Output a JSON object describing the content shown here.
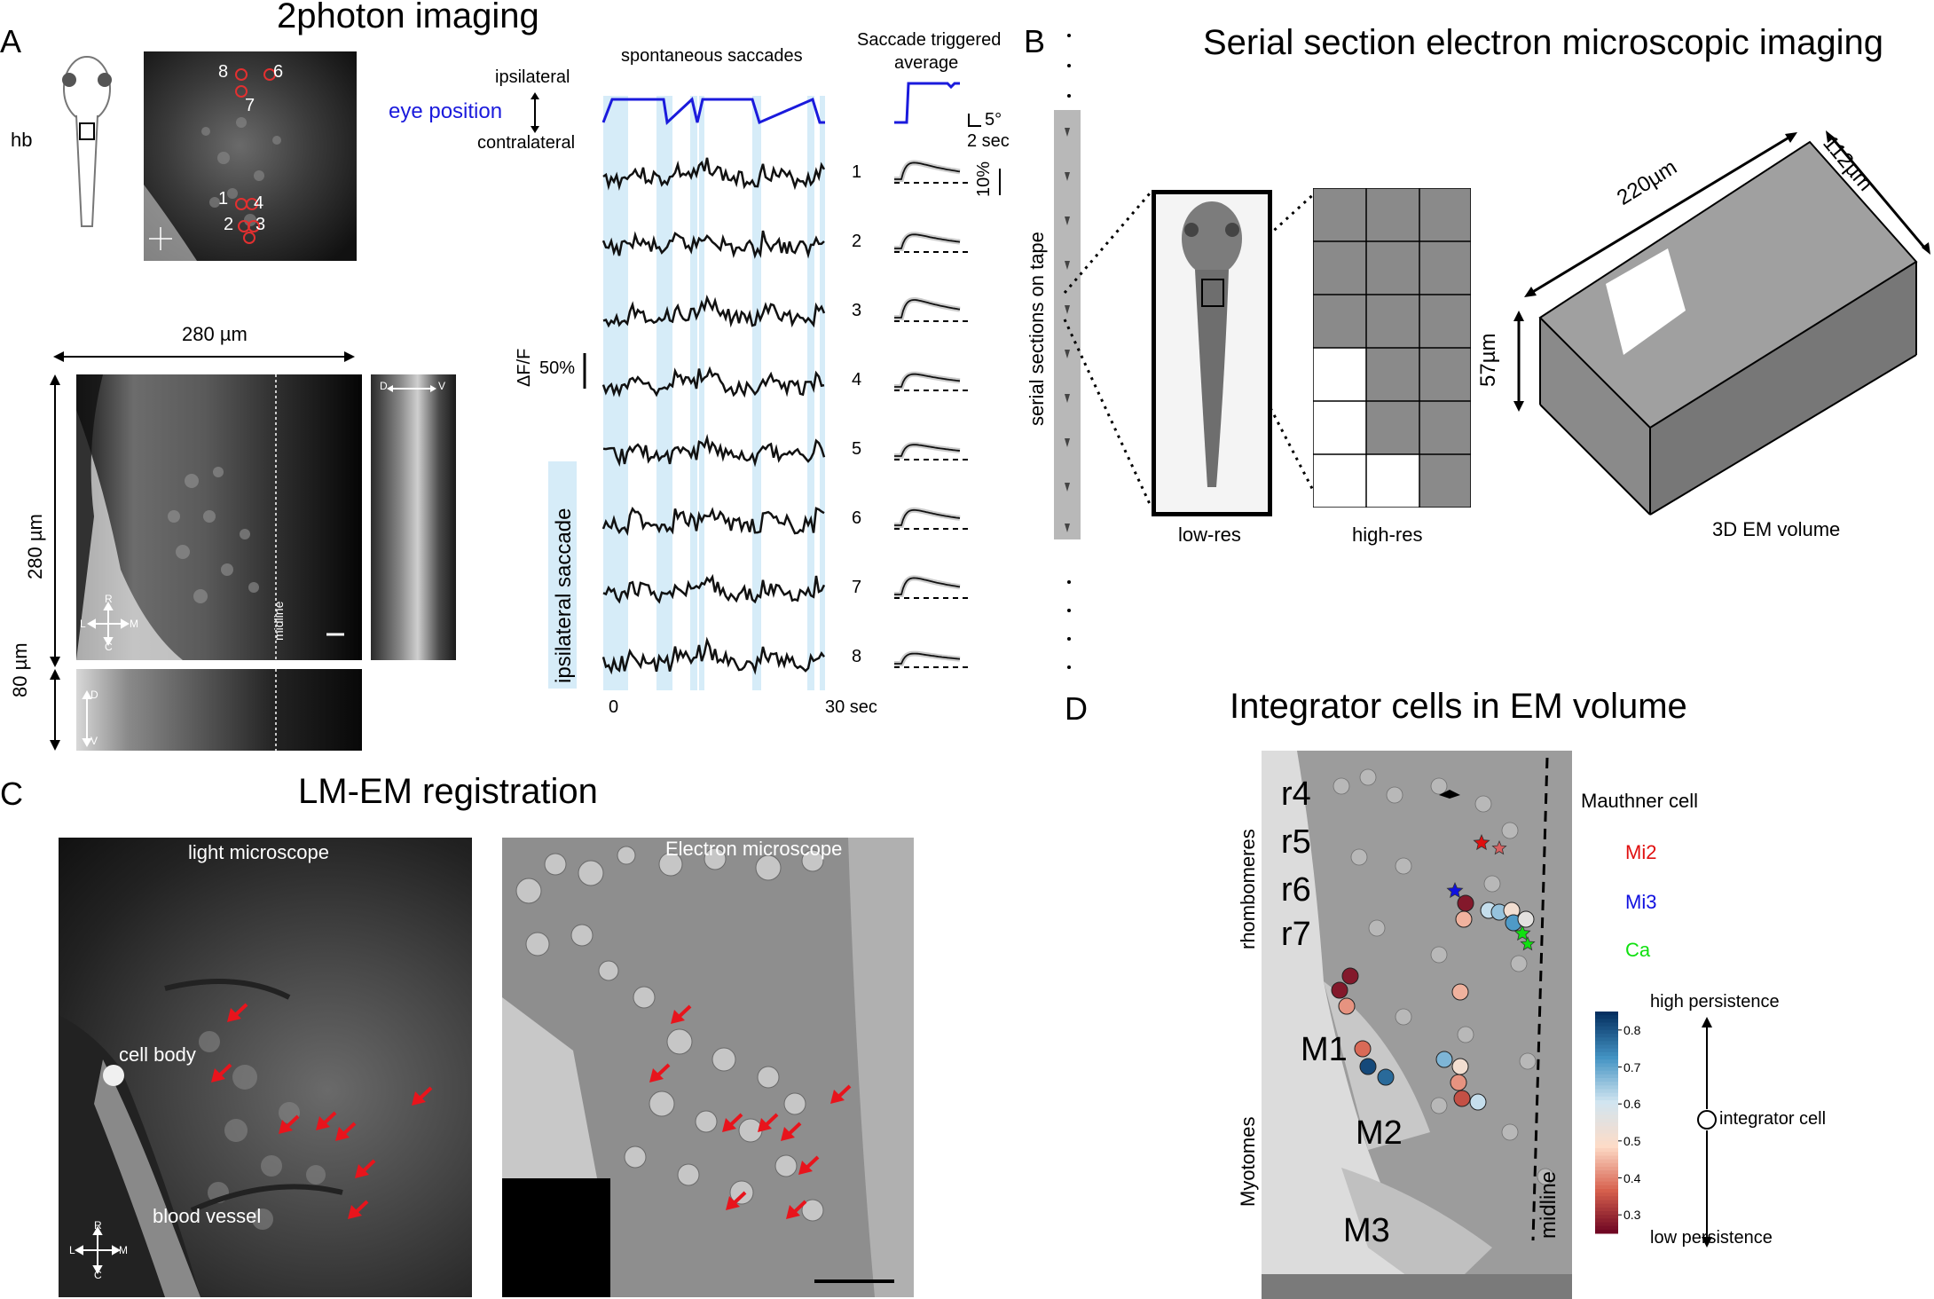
{
  "panelA": {
    "letter": "A",
    "title": "2photon imaging",
    "hb": "hb",
    "cell_numbers": [
      "1",
      "2",
      "3",
      "4",
      "5",
      "6",
      "7",
      "8"
    ],
    "compass": {
      "r": "R",
      "l": "L",
      "m": "M",
      "c": "C",
      "d": "D",
      "v": "V"
    },
    "dim_280_h": "280 µm",
    "dim_280_v": "280 µm",
    "dim_80": "80 µm",
    "midline": "midline",
    "ipsilateral": "ipsilateral",
    "contralateral": "contralateral",
    "eye_position": "eye position",
    "spontaneous": "spontaneous saccades",
    "sta_title_1": "Saccade triggered",
    "sta_title_2": "average",
    "scale_deg": "5°",
    "scale_sec": "2 sec",
    "scale_pct": "10%",
    "dff": "ΔF/F",
    "pct50": "50%",
    "ipsi_saccade": "ipsilateral  saccade",
    "x_start": "0",
    "x_end": "30 sec",
    "eye_color": "#1a1adc",
    "shade_color": "#d6ecf8"
  },
  "panelB": {
    "letter": "B",
    "title": "Serial section electron microscopic imaging",
    "tape": "serial sections on tape",
    "lowres": "low-res",
    "highres": "high-res",
    "volume": "3D EM volume",
    "dim_220": "220µm",
    "dim_112": "112µm",
    "dim_57": "57µm"
  },
  "panelC": {
    "letter": "C",
    "title": "LM-EM registration",
    "light": "light microscope",
    "electron": "Electron microscope",
    "cell_body": "cell body",
    "blood_vessel": "blood vessel",
    "arrow_color": "#e8141c"
  },
  "panelD": {
    "letter": "D",
    "title": "Integrator cells in EM volume",
    "rhombomeres": "rhombomeres",
    "r4": "r4",
    "r5": "r5",
    "r6": "r6",
    "r7": "r7",
    "m1": "M1",
    "m2": "M2",
    "m3": "M3",
    "myotomes": "Myotomes",
    "midline": "midline",
    "mauthner": "Mauthner cell",
    "mi2": "Mi2",
    "mi3": "Mi3",
    "ca": "Ca",
    "mi2_color": "#e01010",
    "mi3_color": "#1010e0",
    "ca_color": "#10e010",
    "high": "high persistence",
    "low": "low persistence",
    "integrator": "integrator cell",
    "colorbar_ticks": [
      "0.8",
      "0.7",
      "0.6",
      "0.5",
      "0.4",
      "0.3"
    ]
  }
}
